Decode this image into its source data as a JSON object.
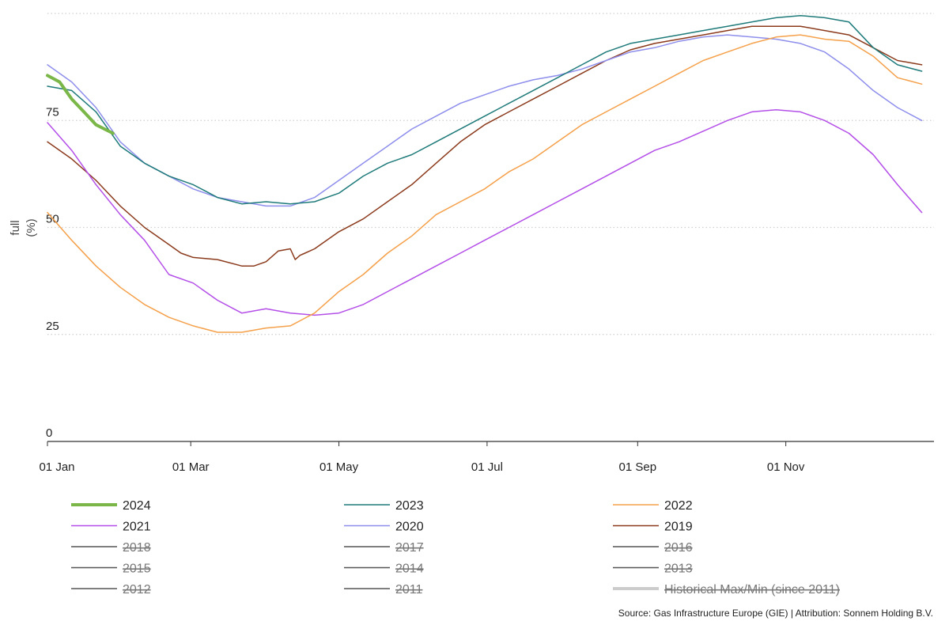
{
  "chart_data": {
    "type": "line",
    "ylabel_top": "full",
    "ylabel_bottom": "(%)",
    "ylim": [
      0,
      100
    ],
    "yticks": [
      0,
      25,
      50,
      75
    ],
    "xticks": [
      {
        "day": 0,
        "label": "01 Jan"
      },
      {
        "day": 59,
        "label": "01 Mar"
      },
      {
        "day": 120,
        "label": "01 May"
      },
      {
        "day": 181,
        "label": "01 Jul"
      },
      {
        "day": 243,
        "label": "01 Sep"
      },
      {
        "day": 304,
        "label": "01 Nov"
      }
    ],
    "grid": "horizontal dotted",
    "legend_placement": "bottom",
    "series": [
      {
        "name": "2024",
        "color": "#7ab648",
        "width": 4,
        "active": true,
        "x": [
          0,
          5,
          10,
          15,
          20,
          27
        ],
        "y": [
          85.5,
          84,
          80,
          77,
          74,
          72
        ]
      },
      {
        "name": "2023",
        "color": "#1f7a7a",
        "width": 1.5,
        "active": true,
        "x": [
          0,
          10,
          20,
          30,
          40,
          50,
          60,
          70,
          80,
          90,
          100,
          110,
          120,
          130,
          140,
          150,
          160,
          170,
          180,
          190,
          200,
          210,
          220,
          230,
          240,
          250,
          260,
          270,
          280,
          290,
          300,
          310,
          320,
          330,
          340,
          350,
          360
        ],
        "y": [
          83,
          82,
          77,
          69,
          65,
          62,
          60,
          57,
          55.5,
          56,
          55.5,
          56,
          58,
          62,
          65,
          67,
          70,
          73,
          76,
          79,
          82,
          85,
          88,
          91,
          93,
          94,
          95,
          96,
          97,
          98,
          99,
          99.5,
          99,
          98,
          92,
          88,
          86.5
        ]
      },
      {
        "name": "2022",
        "color": "#f5a04a",
        "width": 1.5,
        "active": true,
        "x": [
          0,
          10,
          20,
          30,
          40,
          50,
          60,
          70,
          80,
          90,
          100,
          110,
          120,
          130,
          140,
          150,
          160,
          170,
          180,
          190,
          200,
          210,
          220,
          230,
          240,
          250,
          260,
          270,
          280,
          290,
          300,
          310,
          320,
          330,
          340,
          350,
          360
        ],
        "y": [
          53.5,
          47,
          41,
          36,
          32,
          29,
          27,
          25.5,
          25.5,
          26.5,
          27,
          30,
          35,
          39,
          44,
          48,
          53,
          56,
          59,
          63,
          66,
          70,
          74,
          77,
          80,
          83,
          86,
          89,
          91,
          93,
          94.5,
          95,
          94,
          93.5,
          90,
          85,
          83.5
        ]
      },
      {
        "name": "2021",
        "color": "#b44fe8",
        "width": 1.5,
        "active": true,
        "x": [
          0,
          10,
          20,
          30,
          40,
          50,
          60,
          70,
          80,
          90,
          100,
          110,
          120,
          130,
          140,
          150,
          160,
          170,
          180,
          190,
          200,
          210,
          220,
          230,
          240,
          250,
          260,
          270,
          280,
          290,
          300,
          310,
          320,
          330,
          340,
          350,
          360
        ],
        "y": [
          74.5,
          68,
          60,
          53,
          47,
          39,
          37,
          33,
          30,
          31,
          30,
          29.5,
          30,
          32,
          35,
          38,
          41,
          44,
          47,
          50,
          53,
          56,
          59,
          62,
          65,
          68,
          70,
          72.5,
          75,
          77,
          77.5,
          77,
          75,
          72,
          67,
          60,
          53.5
        ]
      },
      {
        "name": "2020",
        "color": "#8e8eec",
        "width": 1.5,
        "active": true,
        "x": [
          0,
          10,
          20,
          30,
          40,
          50,
          60,
          70,
          80,
          90,
          100,
          110,
          120,
          130,
          140,
          150,
          160,
          170,
          180,
          190,
          200,
          210,
          220,
          230,
          240,
          250,
          260,
          270,
          280,
          290,
          300,
          310,
          320,
          330,
          340,
          350,
          360
        ],
        "y": [
          88,
          84,
          78,
          70,
          65,
          62,
          59,
          57,
          56,
          55,
          55,
          57,
          61,
          65,
          69,
          73,
          76,
          79,
          81,
          83,
          84.5,
          85.5,
          87,
          89,
          91,
          92,
          93.5,
          94.5,
          95,
          94.5,
          94,
          93,
          91,
          87,
          82,
          78,
          75
        ]
      },
      {
        "name": "2019",
        "color": "#8b3a1c",
        "width": 1.5,
        "active": true,
        "x": [
          0,
          10,
          20,
          30,
          40,
          50,
          55,
          60,
          70,
          80,
          85,
          90,
          95,
          100,
          102,
          104,
          106,
          110,
          120,
          130,
          140,
          150,
          160,
          170,
          180,
          190,
          200,
          210,
          220,
          230,
          240,
          250,
          260,
          270,
          280,
          290,
          300,
          310,
          320,
          330,
          340,
          350,
          360
        ],
        "y": [
          70,
          66,
          61,
          55,
          50,
          46,
          44,
          43,
          42.5,
          41,
          41,
          42,
          44.5,
          45,
          42.5,
          43.5,
          44,
          45,
          49,
          52,
          56,
          60,
          65,
          70,
          74,
          77,
          80,
          83,
          86,
          89,
          91.5,
          93,
          94,
          95,
          96,
          97,
          97,
          97,
          96,
          95,
          92,
          89,
          88
        ]
      },
      {
        "name": "2018",
        "color": "#555555",
        "width": 1.5,
        "active": false,
        "x": [],
        "y": []
      },
      {
        "name": "2017",
        "color": "#555555",
        "width": 1.5,
        "active": false,
        "x": [],
        "y": []
      },
      {
        "name": "2016",
        "color": "#555555",
        "width": 1.5,
        "active": false,
        "x": [],
        "y": []
      },
      {
        "name": "2015",
        "color": "#555555",
        "width": 1.5,
        "active": false,
        "x": [],
        "y": []
      },
      {
        "name": "2014",
        "color": "#555555",
        "width": 1.5,
        "active": false,
        "x": [],
        "y": []
      },
      {
        "name": "2013",
        "color": "#555555",
        "width": 1.5,
        "active": false,
        "x": [],
        "y": []
      },
      {
        "name": "2012",
        "color": "#555555",
        "width": 1.5,
        "active": false,
        "x": [],
        "y": []
      },
      {
        "name": "2011",
        "color": "#555555",
        "width": 1.5,
        "active": false,
        "x": [],
        "y": []
      },
      {
        "name": "Historical Max/Min (since 2011)",
        "color": "#cccccc",
        "width": 4,
        "active": false,
        "x": [],
        "y": []
      }
    ]
  },
  "source_text": "Source: Gas Infrastructure Europe (GIE) | Attribution: Sonnem Holding B.V."
}
